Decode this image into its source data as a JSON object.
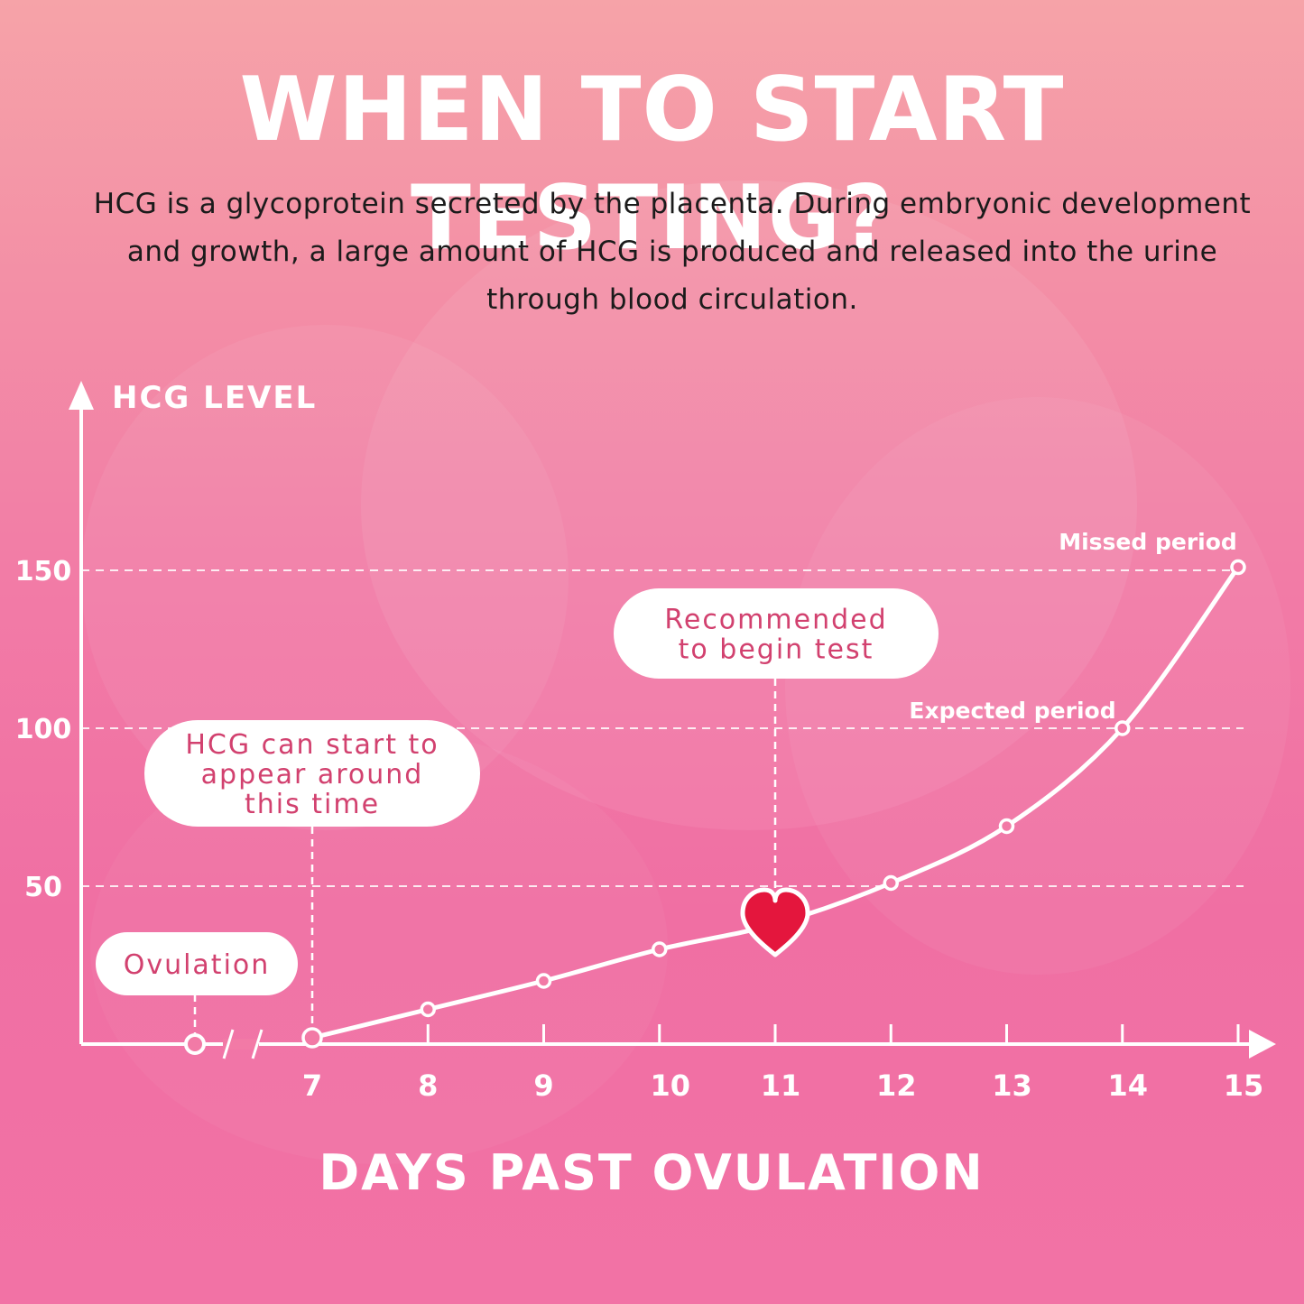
{
  "title": "WHEN TO START TESTING?",
  "description": "HCG is a glycoprotein secreted by the placenta. During embryonic development and growth, a large amount of HCG is produced and released into the urine through blood circulation.",
  "colors": {
    "line": "#ffffff",
    "text_dark": "#1b1b1b",
    "bubble_text": "#d2416f",
    "heart": "#e4163d"
  },
  "chart_data": {
    "type": "line",
    "ylabel": "HCG LEVEL",
    "xlabel": "DAYS PAST OVULATION",
    "yticks": [
      50,
      100,
      150
    ],
    "ylim": [
      0,
      150
    ],
    "xticks": [
      "7",
      "8",
      "9",
      "10",
      "11",
      "12",
      "13",
      "14",
      "15"
    ],
    "xlim": [
      7,
      15
    ],
    "axis_break": true,
    "grid": "dashed horizontal at y ticks",
    "series": [
      {
        "x": [
          7,
          8,
          9,
          10,
          11,
          12,
          13,
          14,
          15
        ],
        "y": [
          2,
          11,
          20,
          30,
          38,
          51,
          69,
          100,
          151
        ]
      }
    ],
    "ovulation_point": {
      "label": "Ovulation",
      "y": 0
    },
    "annotations": [
      {
        "text_lines": [
          "HCG can start to",
          "appear around",
          "this time"
        ],
        "x": 7
      },
      {
        "text_lines": [
          "Recommended",
          "to begin test"
        ],
        "x": 11,
        "marker": "heart"
      },
      {
        "text": "Expected period",
        "x": 14
      },
      {
        "text": "Missed period",
        "x": 15
      }
    ]
  }
}
